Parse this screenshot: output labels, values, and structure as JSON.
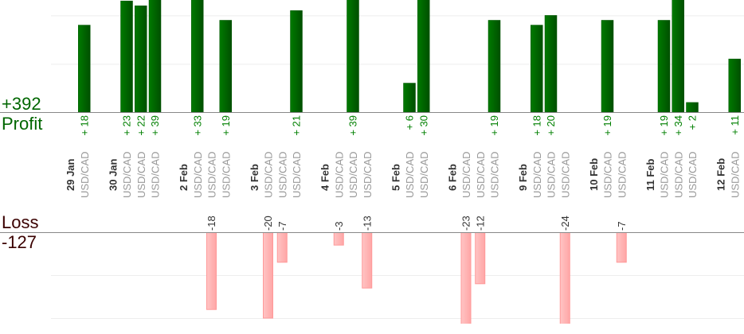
{
  "chart_data": {
    "type": "bar",
    "profit": {
      "label": "Profit",
      "total": "+392",
      "color": "#006600",
      "gridline_step": 10
    },
    "loss": {
      "label": "Loss",
      "total": "-127",
      "color": "#ffb0b0",
      "text_color": "#3a0000",
      "gridline_step": 10
    },
    "days": [
      {
        "date": "29 Jan",
        "trades": [
          {
            "pair": "USD/CAD",
            "result": 18
          }
        ]
      },
      {
        "date": "30 Jan",
        "trades": [
          {
            "pair": "USD/CAD",
            "result": 23
          },
          {
            "pair": "USD/CAD",
            "result": 22
          },
          {
            "pair": "USD/CAD",
            "result": 39
          }
        ]
      },
      {
        "date": "2 Feb",
        "trades": [
          {
            "pair": "USD/CAD",
            "result": 33
          },
          {
            "pair": "USD/CAD",
            "result": -18
          },
          {
            "pair": "USD/CAD",
            "result": 19
          }
        ]
      },
      {
        "date": "3 Feb",
        "trades": [
          {
            "pair": "USD/CAD",
            "result": -20
          },
          {
            "pair": "USD/CAD",
            "result": -7
          },
          {
            "pair": "USD/CAD",
            "result": 21
          }
        ]
      },
      {
        "date": "4 Feb",
        "trades": [
          {
            "pair": "USD/CAD",
            "result": -3
          },
          {
            "pair": "USD/CAD",
            "result": 39
          },
          {
            "pair": "USD/CAD",
            "result": -13
          }
        ]
      },
      {
        "date": "5 Feb",
        "trades": [
          {
            "pair": "USD/CAD",
            "result": 6
          },
          {
            "pair": "USD/CAD",
            "result": 30
          }
        ]
      },
      {
        "date": "6 Feb",
        "trades": [
          {
            "pair": "USD/CAD",
            "result": -23
          },
          {
            "pair": "USD/CAD",
            "result": -12
          },
          {
            "pair": "USD/CAD",
            "result": 19
          }
        ]
      },
      {
        "date": "9 Feb",
        "trades": [
          {
            "pair": "USD/CAD",
            "result": 18
          },
          {
            "pair": "USD/CAD",
            "result": 20
          },
          {
            "pair": "USD/CAD",
            "result": -24
          }
        ]
      },
      {
        "date": "10 Feb",
        "trades": [
          {
            "pair": "USD/CAD",
            "result": 19
          },
          {
            "pair": "USD/CAD",
            "result": -7
          }
        ]
      },
      {
        "date": "11 Feb",
        "trades": [
          {
            "pair": "USD/CAD",
            "result": 19
          },
          {
            "pair": "USD/CAD",
            "result": 34
          },
          {
            "pair": "USD/CAD",
            "result": 2
          }
        ]
      },
      {
        "date": "12 Feb",
        "trades": [
          {
            "pair": "USD/CAD",
            "result": 11
          }
        ]
      }
    ]
  }
}
